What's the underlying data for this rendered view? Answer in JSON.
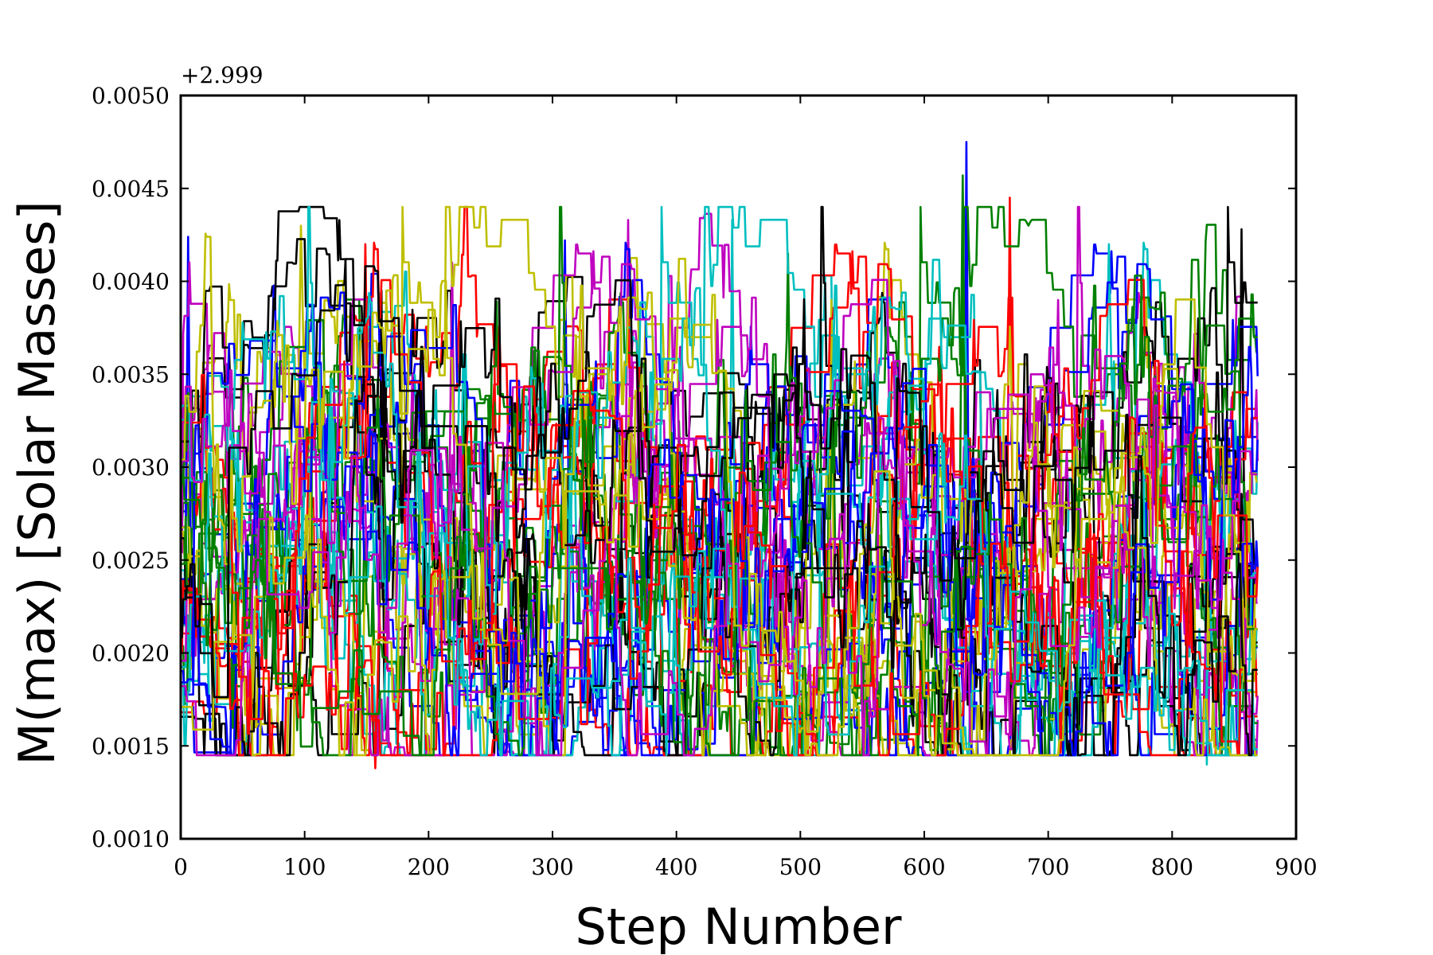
{
  "chart_data": {
    "type": "line",
    "title": "",
    "xlabel": "Step Number",
    "ylabel": "M(max) [Solar Masses]",
    "y_offset_label": "+2.999",
    "y_offset": 2.999,
    "xlim": [
      0,
      900
    ],
    "ylim": [
      0.001,
      0.005
    ],
    "x_ticks": [
      0,
      100,
      200,
      300,
      400,
      500,
      600,
      700,
      800,
      900
    ],
    "x_tick_labels": [
      "0",
      "100",
      "200",
      "300",
      "400",
      "500",
      "600",
      "700",
      "800",
      "900"
    ],
    "y_ticks": [
      0.001,
      0.0015,
      0.002,
      0.0025,
      0.003,
      0.0035,
      0.004,
      0.0045,
      0.005
    ],
    "y_tick_labels": [
      "0.0010",
      "0.0015",
      "0.0020",
      "0.0025",
      "0.0030",
      "0.0035",
      "0.0040",
      "0.0045",
      "0.0050"
    ],
    "grid": false,
    "legend": "none",
    "n_steps": 870,
    "band": {
      "low": 0.00155,
      "high": 0.0034,
      "center": 0.0022
    },
    "colors": [
      "#0000ff",
      "#008000",
      "#ff0000",
      "#00bfbf",
      "#bf00bf",
      "#bfbf00",
      "#000000"
    ],
    "n_series": 42,
    "annotated_peaks": [
      {
        "color": "#00bfbf",
        "x": 634,
        "y": 0.00475
      },
      {
        "color": "#0000ff",
        "x": 631,
        "y": 0.00457
      },
      {
        "color": "#00bfbf",
        "x": 669,
        "y": 0.00445
      },
      {
        "color": "#bf00bf",
        "x": 445,
        "y": 0.00433
      },
      {
        "color": "#ff0000",
        "x": 361,
        "y": 0.00433
      },
      {
        "color": "#0000ff",
        "x": 97,
        "y": 0.0043
      },
      {
        "color": "#bfbf00",
        "x": 856,
        "y": 0.00428
      },
      {
        "color": "#bfbf00",
        "x": 6,
        "y": 0.00424
      },
      {
        "color": "#000000",
        "x": 684,
        "y": 0.0043
      },
      {
        "color": "#bf00bf",
        "x": 149,
        "y": 0.0042
      },
      {
        "color": "#008000",
        "x": 749,
        "y": 0.0042
      },
      {
        "color": "#000000",
        "x": 219,
        "y": 0.0041
      },
      {
        "color": "#0000ff",
        "x": 525,
        "y": 0.0039
      },
      {
        "color": "#ff0000",
        "x": 162,
        "y": 0.00395
      },
      {
        "color": "#bfbf00",
        "x": 310,
        "y": 0.00422
      },
      {
        "color": "#00bfbf",
        "x": 490,
        "y": 0.00415
      }
    ],
    "annotated_dips": [
      {
        "color": "#ff0000",
        "x": 157,
        "y": 0.00138
      },
      {
        "color": "#0000ff",
        "x": 828,
        "y": 0.0014
      },
      {
        "color": "#ff0000",
        "x": 55,
        "y": 0.00145
      },
      {
        "color": "#bfbf00",
        "x": 673,
        "y": 0.00148
      }
    ]
  }
}
